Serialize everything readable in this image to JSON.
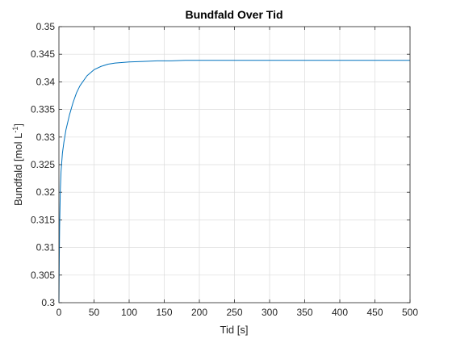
{
  "chart_data": {
    "type": "line",
    "title": "Bundfald Over Tid",
    "xlabel": "Tid [s]",
    "ylabel": {
      "base": "Bundfald [mol L",
      "exponent": "-1",
      "suffix": "]"
    },
    "xlim": [
      0,
      500
    ],
    "ylim": [
      0.3,
      0.35
    ],
    "xticks": [
      "0",
      "50",
      "100",
      "150",
      "200",
      "250",
      "300",
      "350",
      "400",
      "450",
      "500"
    ],
    "yticks": [
      "0.3",
      "0.305",
      "0.31",
      "0.315",
      "0.32",
      "0.325",
      "0.33",
      "0.335",
      "0.34",
      "0.345",
      "0.35"
    ],
    "grid": true,
    "series": [
      {
        "color": "#0072bd",
        "x": [
          0,
          0.5,
          1,
          2,
          3,
          5,
          7,
          10,
          15,
          20,
          25,
          30,
          40,
          50,
          60,
          70,
          80,
          100,
          120,
          140,
          160,
          180,
          200,
          250,
          300,
          350,
          400,
          450,
          500
        ],
        "y": [
          0.3,
          0.3082,
          0.3138,
          0.3204,
          0.3237,
          0.3271,
          0.329,
          0.3313,
          0.334,
          0.3362,
          0.338,
          0.3393,
          0.3411,
          0.3422,
          0.3428,
          0.3432,
          0.3434,
          0.3436,
          0.3437,
          0.3438,
          0.3438,
          0.3439,
          0.3439,
          0.3439,
          0.3439,
          0.3439,
          0.3439,
          0.3439,
          0.3439
        ]
      }
    ]
  }
}
